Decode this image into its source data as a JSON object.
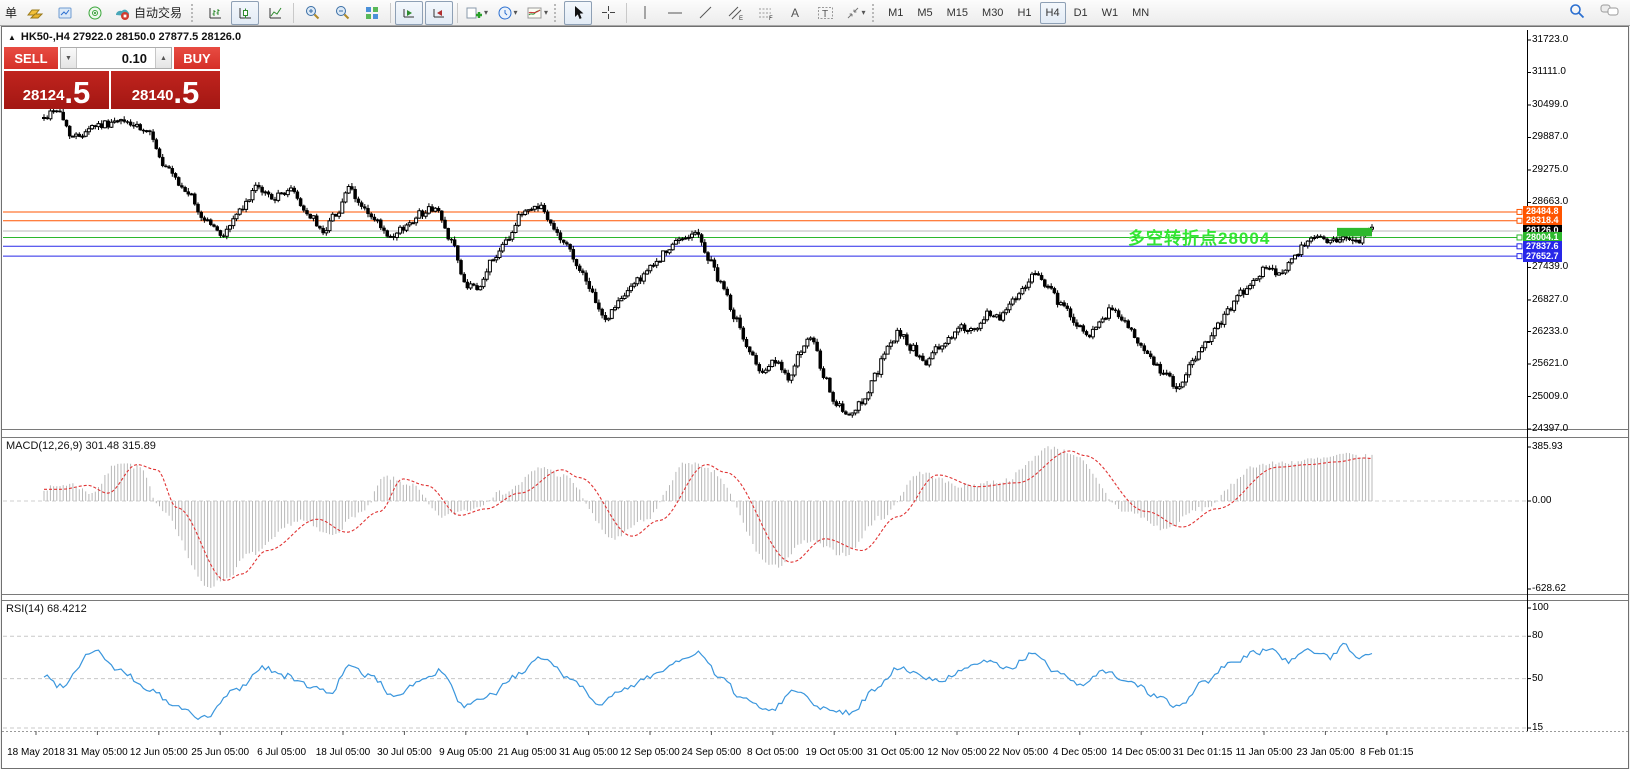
{
  "toolbar": {
    "new_order_label": "单",
    "autotrade_label": "自动交易",
    "timeframes": [
      "M1",
      "M5",
      "M15",
      "M30",
      "H1",
      "H4",
      "D1",
      "W1",
      "MN"
    ],
    "active_timeframe": "H4"
  },
  "chart": {
    "symbol_header": "HK50-,H4  27922.0 28150.0 27877.5 28126.0",
    "trade_panel": {
      "sell_label": "SELL",
      "buy_label": "BUY",
      "volume": "0.10",
      "spin_down": "▼",
      "spin_up": "▲",
      "sell_price_main": "28124",
      "sell_price_frac": ".5",
      "buy_price_main": "28140",
      "buy_price_frac": ".5"
    },
    "annotation": {
      "text": "多空转折点28004",
      "color": "#33E633"
    }
  },
  "macd": {
    "label": "MACD(12,26,9) 301.48 315.89"
  },
  "rsi": {
    "label": "RSI(14) 68.4212"
  },
  "chart_data": {
    "type": "candlestick",
    "symbol": "HK50-",
    "timeframe": "H4",
    "ohlc_current": {
      "open": 27922.0,
      "high": 28150.0,
      "low": 27877.5,
      "close": 28126.0
    },
    "bid": "28124.5",
    "ask": "28140.5",
    "price_axis": {
      "top_value": 31723.0,
      "bottom_value": 24397.0,
      "ticks": [
        "31723.0",
        "31111.0",
        "30499.0",
        "29887.0",
        "29275.0",
        "28663.0",
        "27439.0",
        "26827.0",
        "26233.0",
        "25621.0",
        "25009.0",
        "24397.0"
      ]
    },
    "hlines": [
      {
        "price": 28484.8,
        "label": "28484.8",
        "color": "#ff5500",
        "label_bg": "#ff5500",
        "marker": true
      },
      {
        "price": 28318.4,
        "label": "28318.4",
        "color": "#ff5500",
        "label_bg": "#ff5500",
        "marker": true
      },
      {
        "price": 28126.0,
        "label": "28126.0",
        "color": "#b8b8b8",
        "label_bg": "#000000",
        "marker": false
      },
      {
        "price": 28004.1,
        "label": "28004.1",
        "color": "#2db82d",
        "label_bg": "#2db82d",
        "marker": true
      },
      {
        "price": 27837.6,
        "label": "27837.6",
        "color": "#2828e8",
        "label_bg": "#2828e8",
        "marker": true
      },
      {
        "price": 27652.7,
        "label": "27652.7",
        "color": "#2828e8",
        "label_bg": "#2828e8",
        "marker": true
      }
    ],
    "highlight_box": {
      "price_top": 28185,
      "price_bottom": 28025,
      "color": "#2db82d"
    },
    "price_path": [
      [
        0,
        30250
      ],
      [
        0.008,
        30430
      ],
      [
        0.023,
        29900
      ],
      [
        0.038,
        30120
      ],
      [
        0.06,
        30180
      ],
      [
        0.08,
        29950
      ],
      [
        0.091,
        29300
      ],
      [
        0.106,
        28900
      ],
      [
        0.121,
        28350
      ],
      [
        0.134,
        28060
      ],
      [
        0.148,
        28500
      ],
      [
        0.159,
        28920
      ],
      [
        0.174,
        28760
      ],
      [
        0.185,
        28900
      ],
      [
        0.2,
        28420
      ],
      [
        0.209,
        28120
      ],
      [
        0.221,
        28470
      ],
      [
        0.229,
        28920
      ],
      [
        0.238,
        28620
      ],
      [
        0.249,
        28310
      ],
      [
        0.261,
        27960
      ],
      [
        0.272,
        28210
      ],
      [
        0.283,
        28460
      ],
      [
        0.294,
        28560
      ],
      [
        0.306,
        28010
      ],
      [
        0.317,
        27120
      ],
      [
        0.327,
        27010
      ],
      [
        0.337,
        27560
      ],
      [
        0.349,
        28010
      ],
      [
        0.362,
        28510
      ],
      [
        0.373,
        28610
      ],
      [
        0.382,
        28260
      ],
      [
        0.392,
        27910
      ],
      [
        0.402,
        27460
      ],
      [
        0.413,
        26910
      ],
      [
        0.422,
        26460
      ],
      [
        0.434,
        26810
      ],
      [
        0.445,
        27160
      ],
      [
        0.456,
        27410
      ],
      [
        0.468,
        27710
      ],
      [
        0.479,
        27960
      ],
      [
        0.49,
        28110
      ],
      [
        0.501,
        27610
      ],
      [
        0.51,
        27110
      ],
      [
        0.52,
        26510
      ],
      [
        0.53,
        25910
      ],
      [
        0.541,
        25510
      ],
      [
        0.55,
        25660
      ],
      [
        0.56,
        25360
      ],
      [
        0.569,
        25810
      ],
      [
        0.578,
        26110
      ],
      [
        0.588,
        25310
      ],
      [
        0.598,
        24810
      ],
      [
        0.607,
        24610
      ],
      [
        0.616,
        24910
      ],
      [
        0.626,
        25410
      ],
      [
        0.635,
        25910
      ],
      [
        0.644,
        26210
      ],
      [
        0.654,
        25910
      ],
      [
        0.663,
        25610
      ],
      [
        0.673,
        25910
      ],
      [
        0.682,
        26110
      ],
      [
        0.691,
        26310
      ],
      [
        0.701,
        26210
      ],
      [
        0.711,
        26560
      ],
      [
        0.72,
        26510
      ],
      [
        0.729,
        26810
      ],
      [
        0.739,
        27110
      ],
      [
        0.748,
        27360
      ],
      [
        0.757,
        27010
      ],
      [
        0.767,
        26710
      ],
      [
        0.776,
        26410
      ],
      [
        0.786,
        26110
      ],
      [
        0.795,
        26360
      ],
      [
        0.804,
        26660
      ],
      [
        0.814,
        26410
      ],
      [
        0.824,
        26010
      ],
      [
        0.833,
        25710
      ],
      [
        0.844,
        25410
      ],
      [
        0.855,
        25160
      ],
      [
        0.864,
        25610
      ],
      [
        0.874,
        26010
      ],
      [
        0.884,
        26360
      ],
      [
        0.893,
        26660
      ],
      [
        0.902,
        26960
      ],
      [
        0.912,
        27260
      ],
      [
        0.922,
        27460
      ],
      [
        0.931,
        27310
      ],
      [
        0.94,
        27610
      ],
      [
        0.95,
        27860
      ],
      [
        0.959,
        28060
      ],
      [
        0.968,
        27910
      ],
      [
        0.977,
        28010
      ],
      [
        0.987,
        27910
      ],
      [
        1,
        28126
      ]
    ],
    "macd": {
      "axis_labels": [
        "385.93",
        "0.00",
        "-628.62"
      ],
      "axis_max": 385.93,
      "axis_min": -628.62,
      "current_main": 301.48,
      "current_signal": 315.89,
      "values_path": [
        [
          0,
          90
        ],
        [
          0.02,
          120
        ],
        [
          0.035,
          60
        ],
        [
          0.057,
          280
        ],
        [
          0.072,
          240
        ],
        [
          0.087,
          -50
        ],
        [
          0.124,
          -610
        ],
        [
          0.136,
          -560
        ],
        [
          0.155,
          -380
        ],
        [
          0.193,
          -140
        ],
        [
          0.215,
          -240
        ],
        [
          0.24,
          -80
        ],
        [
          0.257,
          170
        ],
        [
          0.275,
          120
        ],
        [
          0.3,
          -110
        ],
        [
          0.32,
          -60
        ],
        [
          0.345,
          60
        ],
        [
          0.377,
          240
        ],
        [
          0.39,
          180
        ],
        [
          0.43,
          -270
        ],
        [
          0.45,
          -150
        ],
        [
          0.486,
          280
        ],
        [
          0.5,
          220
        ],
        [
          0.55,
          -470
        ],
        [
          0.575,
          -290
        ],
        [
          0.603,
          -380
        ],
        [
          0.63,
          -120
        ],
        [
          0.66,
          200
        ],
        [
          0.69,
          110
        ],
        [
          0.72,
          140
        ],
        [
          0.76,
          385
        ],
        [
          0.77,
          350
        ],
        [
          0.817,
          -80
        ],
        [
          0.844,
          -200
        ],
        [
          0.87,
          -60
        ],
        [
          0.916,
          260
        ],
        [
          0.94,
          280
        ],
        [
          0.96,
          300
        ],
        [
          0.98,
          330
        ],
        [
          1,
          315
        ]
      ]
    },
    "rsi": {
      "axis_labels": [
        "100",
        "80",
        "50",
        "15"
      ],
      "levels": [
        80,
        50,
        15
      ],
      "current": 68.4212,
      "path": [
        [
          0,
          52
        ],
        [
          0.012,
          45
        ],
        [
          0.038,
          70
        ],
        [
          0.057,
          55
        ],
        [
          0.08,
          42
        ],
        [
          0.099,
          30
        ],
        [
          0.121,
          22
        ],
        [
          0.144,
          42
        ],
        [
          0.166,
          58
        ],
        [
          0.181,
          52
        ],
        [
          0.2,
          45
        ],
        [
          0.215,
          40
        ],
        [
          0.23,
          58
        ],
        [
          0.245,
          52
        ],
        [
          0.264,
          38
        ],
        [
          0.283,
          48
        ],
        [
          0.298,
          55
        ],
        [
          0.317,
          30
        ],
        [
          0.336,
          38
        ],
        [
          0.355,
          52
        ],
        [
          0.377,
          65
        ],
        [
          0.396,
          50
        ],
        [
          0.419,
          33
        ],
        [
          0.437,
          42
        ],
        [
          0.456,
          52
        ],
        [
          0.479,
          62
        ],
        [
          0.494,
          68
        ],
        [
          0.509,
          50
        ],
        [
          0.528,
          35
        ],
        [
          0.547,
          28
        ],
        [
          0.566,
          42
        ],
        [
          0.584,
          30
        ],
        [
          0.607,
          26
        ],
        [
          0.626,
          42
        ],
        [
          0.644,
          58
        ],
        [
          0.66,
          52
        ],
        [
          0.675,
          48
        ],
        [
          0.69,
          55
        ],
        [
          0.708,
          62
        ],
        [
          0.727,
          58
        ],
        [
          0.746,
          68
        ],
        [
          0.761,
          55
        ],
        [
          0.78,
          45
        ],
        [
          0.799,
          55
        ],
        [
          0.818,
          48
        ],
        [
          0.837,
          38
        ],
        [
          0.855,
          30
        ],
        [
          0.874,
          48
        ],
        [
          0.893,
          60
        ],
        [
          0.912,
          68
        ],
        [
          0.923,
          72
        ],
        [
          0.938,
          62
        ],
        [
          0.953,
          70
        ],
        [
          0.968,
          65
        ],
        [
          0.979,
          74
        ],
        [
          0.99,
          66
        ],
        [
          1,
          68.4
        ]
      ]
    },
    "time_labels": [
      "18 May 2018",
      "31 May 05:00",
      "12 Jun 05:00",
      "25 Jun 05:00",
      "6 Jul 05:00",
      "18 Jul 05:00",
      "30 Jul 05:00",
      "9 Aug 05:00",
      "21 Aug 05:00",
      "31 Aug 05:00",
      "12 Sep 05:00",
      "24 Sep 05:00",
      "8 Oct 05:00",
      "19 Oct 05:00",
      "31 Oct 05:00",
      "12 Nov 05:00",
      "22 Nov 05:00",
      "4 Dec 05:00",
      "14 Dec 05:00",
      "31 Dec 01:15",
      "11 Jan 05:00",
      "23 Jan 05:00",
      "8 Feb 01:15"
    ],
    "style": {
      "up": "#ffffff",
      "down": "#000000",
      "wick": "#000000",
      "macd_hist": "#b8b8b8",
      "macd_signal": "#e03434",
      "rsi_line": "#3a96dd"
    }
  }
}
